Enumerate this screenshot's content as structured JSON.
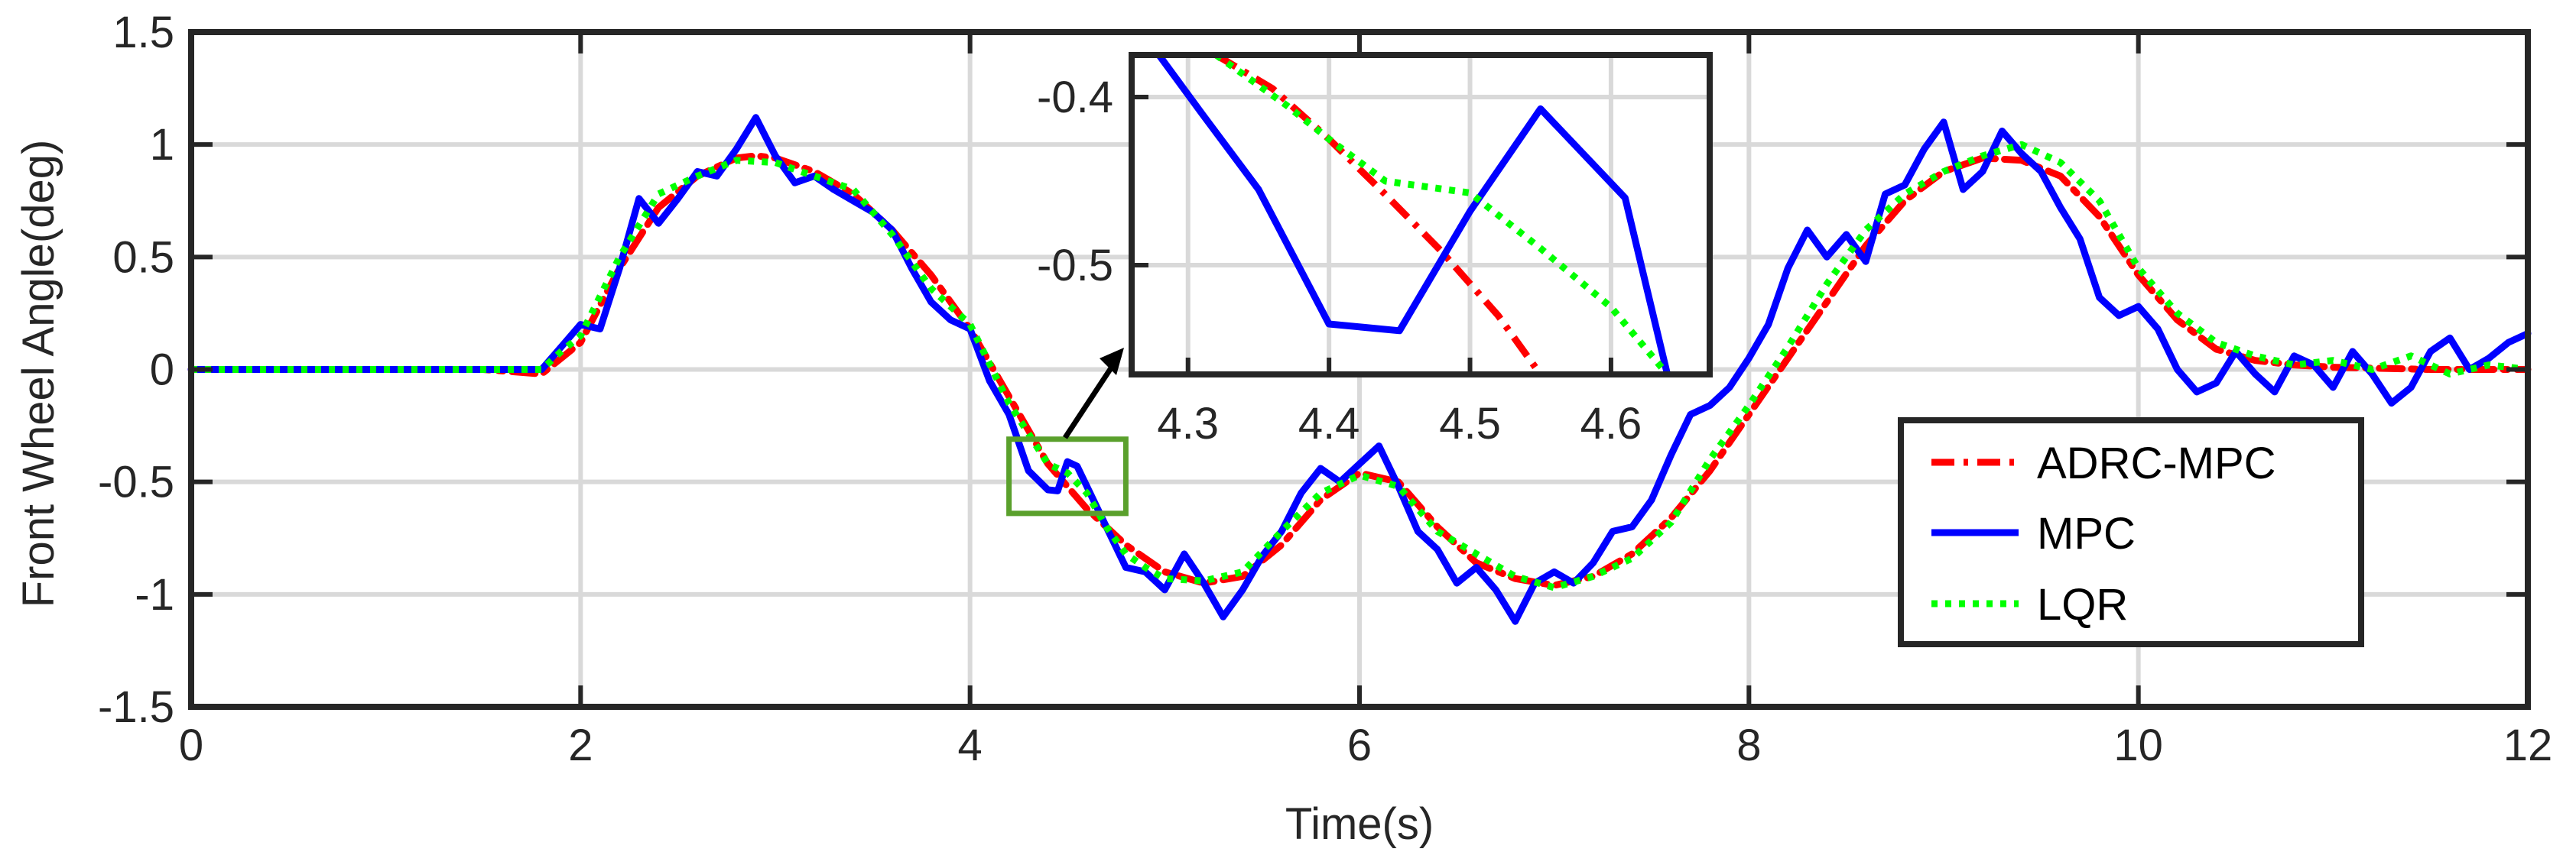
{
  "chart_data": {
    "type": "line",
    "xlabel": "Time(s)",
    "ylabel": "Front Wheel Angle(deg)",
    "xlim": [
      0,
      12
    ],
    "ylim": [
      -1.5,
      1.5
    ],
    "xticks": [
      0,
      2,
      4,
      6,
      8,
      10,
      12
    ],
    "xtick_labels": [
      "0",
      "2",
      "4",
      "6",
      "8",
      "10",
      "12"
    ],
    "yticks": [
      -1.5,
      -1,
      -0.5,
      0,
      0.5,
      1,
      1.5
    ],
    "ytick_labels": [
      "-1.5",
      "-1",
      "-0.5",
      "0",
      "0.5",
      "1",
      "1.5"
    ],
    "grid": true,
    "legend_position": "bottom-right",
    "series": [
      {
        "name": "ADRC-MPC",
        "color": "#ff0000",
        "style": "dash-dot",
        "x": [
          0,
          1.5,
          1.8,
          2.0,
          2.2,
          2.4,
          2.6,
          2.8,
          2.9,
          3.0,
          3.2,
          3.4,
          3.6,
          3.8,
          4.0,
          4.2,
          4.4,
          4.6,
          4.8,
          5.0,
          5.2,
          5.4,
          5.6,
          5.8,
          6.0,
          6.2,
          6.4,
          6.6,
          6.8,
          7.0,
          7.2,
          7.4,
          7.6,
          7.8,
          8.0,
          8.2,
          8.4,
          8.6,
          8.8,
          9.0,
          9.2,
          9.4,
          9.6,
          9.8,
          10.0,
          10.2,
          10.4,
          10.6,
          10.8,
          11.0,
          11.5,
          12.0
        ],
        "y": [
          0,
          0,
          -0.02,
          0.12,
          0.45,
          0.72,
          0.86,
          0.94,
          0.95,
          0.94,
          0.88,
          0.78,
          0.62,
          0.42,
          0.18,
          -0.12,
          -0.42,
          -0.62,
          -0.78,
          -0.9,
          -0.95,
          -0.92,
          -0.78,
          -0.58,
          -0.46,
          -0.5,
          -0.7,
          -0.86,
          -0.93,
          -0.96,
          -0.92,
          -0.82,
          -0.66,
          -0.45,
          -0.2,
          0.05,
          0.3,
          0.55,
          0.75,
          0.88,
          0.94,
          0.93,
          0.86,
          0.68,
          0.42,
          0.22,
          0.09,
          0.04,
          0.02,
          0.01,
          0.0,
          0.0
        ]
      },
      {
        "name": "MPC",
        "color": "#0000ff",
        "style": "solid",
        "x": [
          0,
          1.7,
          1.8,
          1.9,
          2.0,
          2.1,
          2.2,
          2.3,
          2.4,
          2.5,
          2.6,
          2.7,
          2.8,
          2.9,
          3.0,
          3.1,
          3.2,
          3.3,
          3.4,
          3.5,
          3.6,
          3.7,
          3.8,
          3.9,
          4.0,
          4.1,
          4.2,
          4.3,
          4.4,
          4.45,
          4.5,
          4.55,
          4.6,
          4.7,
          4.8,
          4.9,
          5.0,
          5.1,
          5.2,
          5.3,
          5.4,
          5.5,
          5.6,
          5.7,
          5.8,
          5.9,
          6.0,
          6.1,
          6.2,
          6.3,
          6.4,
          6.5,
          6.6,
          6.7,
          6.8,
          6.9,
          7.0,
          7.1,
          7.2,
          7.3,
          7.4,
          7.5,
          7.6,
          7.7,
          7.8,
          7.9,
          8.0,
          8.1,
          8.2,
          8.3,
          8.4,
          8.5,
          8.6,
          8.7,
          8.8,
          8.9,
          9.0,
          9.1,
          9.2,
          9.3,
          9.4,
          9.5,
          9.6,
          9.7,
          9.8,
          9.9,
          10.0,
          10.1,
          10.2,
          10.3,
          10.4,
          10.5,
          10.6,
          10.7,
          10.8,
          10.9,
          11.0,
          11.1,
          11.2,
          11.3,
          11.4,
          11.5,
          11.6,
          11.7,
          11.8,
          11.9,
          12.0
        ],
        "y": [
          0,
          0,
          0.0,
          0.1,
          0.2,
          0.18,
          0.45,
          0.76,
          0.65,
          0.76,
          0.88,
          0.86,
          0.98,
          1.12,
          0.95,
          0.83,
          0.86,
          0.8,
          0.75,
          0.7,
          0.62,
          0.45,
          0.3,
          0.22,
          0.18,
          -0.05,
          -0.2,
          -0.45,
          -0.535,
          -0.54,
          -0.41,
          -0.43,
          -0.52,
          -0.7,
          -0.88,
          -0.9,
          -0.98,
          -0.82,
          -0.95,
          -1.1,
          -0.98,
          -0.83,
          -0.72,
          -0.55,
          -0.44,
          -0.5,
          -0.42,
          -0.34,
          -0.52,
          -0.72,
          -0.8,
          -0.95,
          -0.88,
          -0.98,
          -1.12,
          -0.95,
          -0.9,
          -0.95,
          -0.86,
          -0.72,
          -0.7,
          -0.58,
          -0.38,
          -0.2,
          -0.16,
          -0.08,
          0.05,
          0.2,
          0.45,
          0.62,
          0.5,
          0.6,
          0.48,
          0.78,
          0.82,
          0.98,
          1.1,
          0.8,
          0.88,
          1.06,
          0.96,
          0.88,
          0.72,
          0.58,
          0.32,
          0.24,
          0.28,
          0.18,
          0.0,
          -0.1,
          -0.06,
          0.08,
          -0.02,
          -0.1,
          0.06,
          0.02,
          -0.08,
          0.08,
          -0.02,
          -0.15,
          -0.08,
          0.08,
          0.14,
          0.0,
          0.05,
          0.12,
          0.16
        ]
      },
      {
        "name": "LQR",
        "color": "#00ff00",
        "style": "dotted",
        "x": [
          0,
          1.7,
          1.8,
          1.9,
          2.0,
          2.2,
          2.4,
          2.6,
          2.8,
          3.0,
          3.2,
          3.4,
          3.6,
          3.8,
          4.0,
          4.2,
          4.4,
          4.5,
          4.6,
          4.7,
          4.8,
          4.9,
          5.0,
          5.2,
          5.4,
          5.6,
          5.8,
          6.0,
          6.2,
          6.4,
          6.6,
          6.8,
          7.0,
          7.2,
          7.4,
          7.6,
          7.8,
          8.0,
          8.2,
          8.4,
          8.6,
          8.8,
          9.0,
          9.2,
          9.4,
          9.6,
          9.8,
          10.0,
          10.2,
          10.4,
          10.6,
          10.8,
          11.0,
          11.2,
          11.4,
          11.6,
          11.8,
          12.0
        ],
        "y": [
          0,
          0,
          0.0,
          0.08,
          0.15,
          0.5,
          0.78,
          0.86,
          0.93,
          0.92,
          0.86,
          0.8,
          0.6,
          0.36,
          0.2,
          -0.15,
          -0.42,
          -0.46,
          -0.55,
          -0.7,
          -0.82,
          -0.88,
          -0.93,
          -0.94,
          -0.9,
          -0.72,
          -0.55,
          -0.47,
          -0.52,
          -0.72,
          -0.82,
          -0.92,
          -0.97,
          -0.92,
          -0.84,
          -0.68,
          -0.4,
          -0.16,
          0.1,
          0.38,
          0.62,
          0.78,
          0.88,
          0.95,
          1.0,
          0.92,
          0.75,
          0.45,
          0.25,
          0.12,
          0.06,
          0.02,
          0.04,
          0.0,
          0.06,
          -0.02,
          0.02,
          0.0
        ]
      }
    ],
    "inset": {
      "xlim": [
        4.26,
        4.67
      ],
      "ylim": [
        -0.565,
        -0.375
      ],
      "xticks": [
        4.3,
        4.4,
        4.5,
        4.6
      ],
      "xtick_labels": [
        "4.3",
        "4.4",
        "4.5",
        "4.6"
      ],
      "yticks": [
        -0.4,
        -0.5
      ],
      "ytick_labels": [
        "-0.4",
        "-0.5"
      ],
      "grid": true,
      "series": [
        {
          "name": "ADRC-MPC",
          "color": "#ff0000",
          "style": "dash-dot",
          "x": [
            4.32,
            4.36,
            4.4,
            4.44,
            4.48,
            4.52,
            4.55
          ],
          "y": [
            -0.375,
            -0.395,
            -0.425,
            -0.458,
            -0.492,
            -0.53,
            -0.565
          ]
        },
        {
          "name": "MPC",
          "color": "#0000ff",
          "style": "solid",
          "x": [
            4.275,
            4.31,
            4.35,
            4.4,
            4.45,
            4.5,
            4.55,
            4.61,
            4.64
          ],
          "y": [
            -0.37,
            -0.41,
            -0.455,
            -0.535,
            -0.539,
            -0.468,
            -0.407,
            -0.46,
            -0.565
          ]
        },
        {
          "name": "LQR",
          "color": "#00ff00",
          "style": "dotted",
          "x": [
            4.32,
            4.37,
            4.4,
            4.44,
            4.5,
            4.55,
            4.6,
            4.64
          ],
          "y": [
            -0.375,
            -0.405,
            -0.425,
            -0.45,
            -0.457,
            -0.49,
            -0.525,
            -0.565
          ]
        }
      ]
    },
    "zoom_box": {
      "x_range": [
        4.2,
        4.8
      ],
      "y_range": [
        -0.64,
        -0.31
      ],
      "color": "#5aa02c"
    },
    "legend_entries": [
      "ADRC-MPC",
      "MPC",
      "LQR"
    ]
  }
}
